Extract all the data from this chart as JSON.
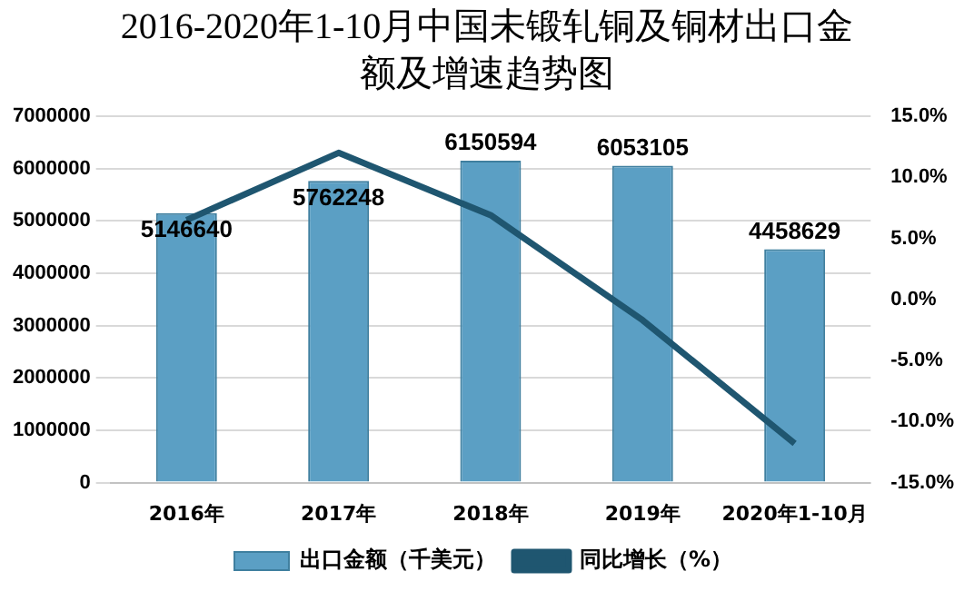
{
  "chart_data": {
    "type": "bar",
    "title": "2016-2020年1-10月中国未锻轧铜及铜材出口金额及增速趋势图",
    "categories": [
      "2016年",
      "2017年",
      "2018年",
      "2019年",
      "2020年1-10月"
    ],
    "series": [
      {
        "name": "出口金额（千美元）",
        "color": "#5b9fc4",
        "values": [
          5146640,
          5762248,
          6150594,
          6053105,
          4458629
        ],
        "value_labels": [
          "5146640",
          "5762248",
          "6150594",
          "6053105",
          "4458629"
        ]
      },
      {
        "name": "同比增长（%）",
        "type": "line",
        "axis": "y2",
        "color": "#1f5670",
        "values": [
          6.5,
          12.0,
          6.9,
          -1.7,
          -11.8
        ]
      }
    ],
    "ylim": [
      0,
      7000000
    ],
    "yticks": [
      0,
      1000000,
      2000000,
      3000000,
      4000000,
      5000000,
      6000000,
      7000000
    ],
    "y2lim": [
      -15,
      15
    ],
    "y2ticks": [
      {
        "value": -15,
        "label": "-15.0%"
      },
      {
        "value": -10,
        "label": "-10.0%"
      },
      {
        "value": -5,
        "label": "-5.0%"
      },
      {
        "value": 0,
        "label": "0.0%"
      },
      {
        "value": 5,
        "label": "5.0%"
      },
      {
        "value": 10,
        "label": "10.0%"
      },
      {
        "value": 15,
        "label": "15.0%"
      }
    ],
    "grid": "y",
    "legend": "bottom",
    "marker": "none"
  }
}
